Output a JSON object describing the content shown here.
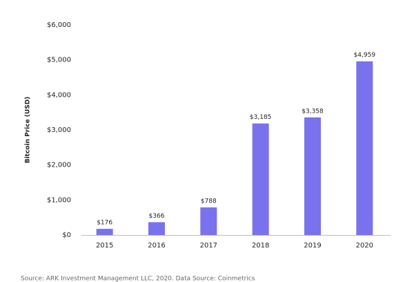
{
  "chart_data": {
    "type": "bar",
    "y_label": "Bitcoin Price (USD)",
    "categories": [
      "2015",
      "2016",
      "2017",
      "2018",
      "2019",
      "2020"
    ],
    "values": [
      176,
      366,
      788,
      3185,
      3358,
      4959
    ],
    "value_labels": [
      "$176",
      "$366",
      "$788",
      "$3,185",
      "$3,358",
      "$4,959"
    ],
    "color": "#7a72ec",
    "ylim": [
      0,
      6000
    ],
    "yticks": [
      {
        "value": 0,
        "label": "$0"
      },
      {
        "value": 1000,
        "label": "$1,000"
      },
      {
        "value": 2000,
        "label": "$2,000"
      },
      {
        "value": 3000,
        "label": "$3,000"
      },
      {
        "value": 4000,
        "label": "$4,000"
      },
      {
        "value": 5000,
        "label": "$5,000"
      },
      {
        "value": 6000,
        "label": "$6,000"
      }
    ],
    "grid": false,
    "source": "Source: ARK Investment Management LLC, 2020. Data Source: Coinmetrics"
  }
}
